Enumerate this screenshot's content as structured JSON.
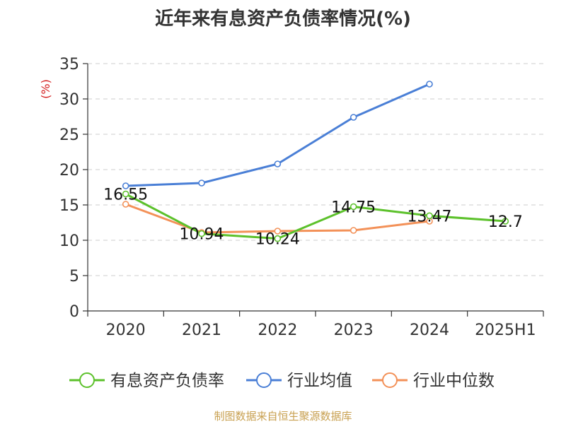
{
  "chart_data": {
    "type": "line",
    "title": "近年来有息资产负债率情况(%)",
    "ylabel": "(%)",
    "categories": [
      "2020",
      "2021",
      "2022",
      "2023",
      "2024",
      "2025H1"
    ],
    "ylim": [
      0,
      35
    ],
    "yticks": [
      0,
      5,
      10,
      15,
      20,
      25,
      30,
      35
    ],
    "grid": true,
    "legend_position": "bottom",
    "series": [
      {
        "name": "有息资产负债率",
        "color": "#5cc12b",
        "values": [
          16.55,
          10.94,
          10.24,
          14.75,
          13.47,
          12.7
        ],
        "labels": [
          "16.55",
          "10.94",
          "10.24",
          "14.75",
          "13.47",
          "12.7"
        ]
      },
      {
        "name": "行业均值",
        "color": "#4a7fd6",
        "values": [
          17.7,
          18.1,
          20.8,
          27.4,
          32.1,
          null
        ]
      },
      {
        "name": "行业中位数",
        "color": "#f39158",
        "values": [
          15.1,
          11.1,
          11.3,
          11.4,
          12.7,
          null
        ]
      }
    ]
  },
  "footer": {
    "source": "制图数据来自恒生聚源数据库"
  },
  "colors": {
    "axis": "#333333",
    "grid": "#cccccc",
    "unit_label": "#d42020"
  }
}
